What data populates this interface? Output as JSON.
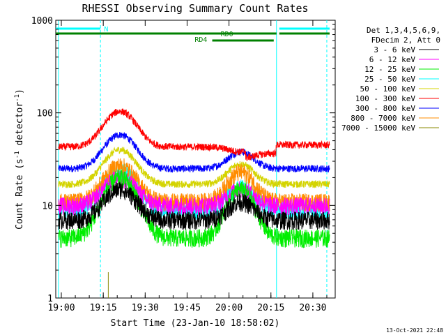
{
  "chart_data": {
    "type": "line",
    "title": "RHESSI Observing Summary Count Rates",
    "xlabel": "Start Time (23-Jan-10 18:58:02)",
    "ylabel_main": "Count Rate (s",
    "ylabel_sup1": "-1",
    "ylabel_mid": " detector",
    "ylabel_sup2": "-1",
    "ylabel_end": ")",
    "y_scale": "log",
    "ylim": [
      1,
      1000
    ],
    "xlim_minutes": [
      18.9667,
      20.6333
    ],
    "x_ticks": [
      {
        "value": 19.0,
        "label": "19:00"
      },
      {
        "value": 19.25,
        "label": "19:15"
      },
      {
        "value": 19.5,
        "label": "19:30"
      },
      {
        "value": 19.75,
        "label": "19:45"
      },
      {
        "value": 20.0,
        "label": "20:00"
      },
      {
        "value": 20.25,
        "label": "20:15"
      },
      {
        "value": 20.5,
        "label": "20:30"
      }
    ],
    "y_ticks": [
      {
        "value": 1,
        "label": "1"
      },
      {
        "value": 10,
        "label": "10"
      },
      {
        "value": 100,
        "label": "100"
      },
      {
        "value": 1000,
        "label": "1000"
      }
    ],
    "legend_header": [
      "Det 1,3,4,5,6,9,",
      "FDecim 2, Att 0"
    ],
    "legend_position": "right",
    "series": [
      {
        "name": "3 - 6 keV",
        "color": "#000000",
        "base": 7,
        "peak1": 15,
        "peak2": 11
      },
      {
        "name": "6 - 12 keV",
        "color": "#ff00ff",
        "base": 10,
        "peak1": 20,
        "peak2": 15
      },
      {
        "name": "12 - 25 keV",
        "color": "#00ee00",
        "base": 4.5,
        "peak1": 20,
        "peak2": 15
      },
      {
        "name": "25 - 50 keV",
        "color": "#00ffff",
        "base": 9,
        "peak1": 24,
        "peak2": 16
      },
      {
        "name": "50 - 100 keV",
        "color": "#d4d400",
        "base": 17,
        "peak1": 40,
        "peak2": 28
      },
      {
        "name": "100 - 300 keV",
        "color": "#ff0000",
        "base": 43,
        "peak1": 104,
        "peak2": 38
      },
      {
        "name": "300 - 800 keV",
        "color": "#0000ff",
        "base": 25,
        "peak1": 58,
        "peak2": 38
      },
      {
        "name": "800 - 7000 keV",
        "color": "#ff8c00",
        "base": 11,
        "peak1": 27,
        "peak2": 23
      },
      {
        "name": "7000 - 15000 keV",
        "color": "#888800",
        "base": 0,
        "peak1": 1.9,
        "peak2": 0
      }
    ],
    "bars": [
      {
        "label": "N",
        "color": "#00ffff",
        "segments": [
          [
            18.9667,
            19.2333
          ],
          [
            20.3,
            20.6
          ]
        ]
      },
      {
        "label": "RD0",
        "color": "#008000",
        "segments": [
          [
            18.9667,
            20.2833
          ],
          [
            20.3,
            20.6
          ]
        ]
      },
      {
        "label": "RD4",
        "color": "#008000",
        "segments": [
          [
            19.9,
            20.2667
          ]
        ]
      }
    ],
    "markers": [
      {
        "time": 18.9833,
        "style": "solid"
      },
      {
        "time": 19.2333,
        "style": "dashed"
      },
      {
        "time": 20.2833,
        "style": "solid"
      },
      {
        "time": 20.5833,
        "style": "dashed"
      }
    ],
    "footer_date": "13-Oct-2021 22:48"
  }
}
